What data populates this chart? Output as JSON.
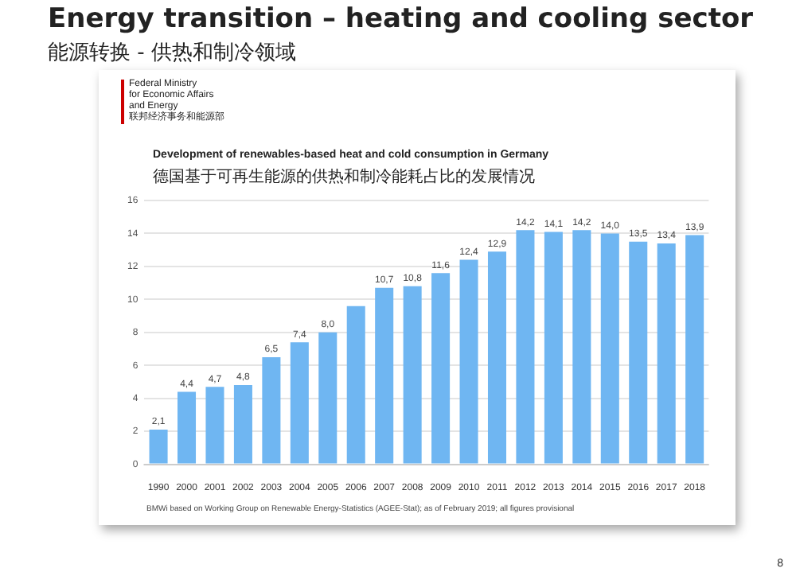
{
  "chart_data": {
    "type": "bar",
    "title": "Development of renewables-based heat and cold consumption in Germany\n德国基于可再生能源的供热和制冷能耗占比的发展情况",
    "annotations": [
      "Energy transition – heating and cooling sector",
      "能源转换 - 供热和制冷领域",
      "Federal Ministry\nfor Economic Affairs\nand Energy\n联邦经济事务和能源部",
      "BMWi based on Working Group on Renewable Energy-Statistics (AGEE-Stat); as of February 2019; all figures provisional",
      "8"
    ],
    "categories": [
      "1990",
      "2000",
      "2001",
      "2002",
      "2003",
      "2004",
      "2005",
      "2006",
      "2007",
      "2008",
      "2009",
      "2010",
      "2011",
      "2012",
      "2013",
      "2014",
      "2015",
      "2016",
      "2017",
      "2018"
    ],
    "values": [
      2.1,
      4.4,
      4.7,
      4.8,
      6.5,
      7.4,
      8.0,
      9.6,
      10.7,
      10.8,
      11.6,
      12.4,
      12.9,
      14.2,
      14.1,
      14.2,
      14.0,
      13.5,
      13.4,
      13.9
    ],
    "value_labels": [
      "2,1",
      "4,4",
      "4,7",
      "4,8",
      "6,5",
      "7,4",
      "8,0",
      null,
      "10,7",
      "10,8",
      "11,6",
      "12,4",
      "12,9",
      "14,2",
      "14,1",
      "14,2",
      "14,0",
      "13,5",
      "13,4",
      "13,9"
    ],
    "color": "#6fb6f2",
    "ylim": [
      0,
      16
    ],
    "yticks": [
      0,
      2,
      4,
      6,
      8,
      10,
      12,
      14,
      16
    ],
    "grid": "y",
    "legend": false
  }
}
